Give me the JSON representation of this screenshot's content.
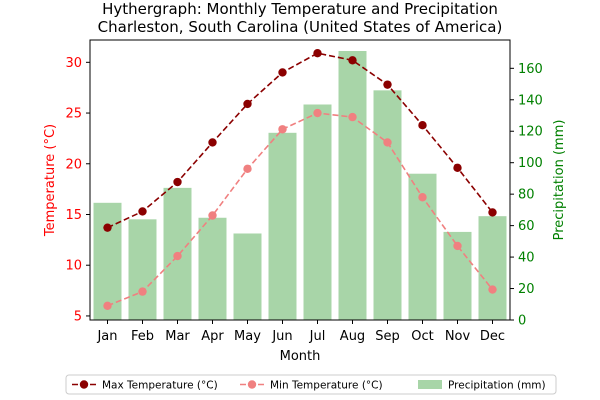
{
  "chart_data": {
    "type": "bar+line",
    "title": "Hythergraph: Monthly Temperature and Precipitation",
    "subtitle": "Charleston, South Carolina (United States of America)",
    "xlabel": "Month",
    "ylabel_left": "Temperature (°C)",
    "ylabel_right": "Precipitation (mm)",
    "categories": [
      "Jan",
      "Feb",
      "Mar",
      "Apr",
      "May",
      "Jun",
      "Jul",
      "Aug",
      "Sep",
      "Oct",
      "Nov",
      "Dec"
    ],
    "ylim_left": [
      4.6,
      32.2
    ],
    "ylim_right": [
      0,
      178
    ],
    "yticks_left": [
      5,
      10,
      15,
      20,
      25,
      30
    ],
    "yticks_right": [
      0,
      20,
      40,
      60,
      80,
      100,
      120,
      140,
      160
    ],
    "grid": false,
    "legend_position": "bottom",
    "series": [
      {
        "name": "Max Temperature (°C)",
        "kind": "line",
        "axis": "left",
        "color": "#8b0000",
        "style": "dashed",
        "marker": "circle",
        "values": [
          13.7,
          15.3,
          18.2,
          22.1,
          25.9,
          29.0,
          30.9,
          30.2,
          27.8,
          23.8,
          19.6,
          15.2
        ]
      },
      {
        "name": "Min Temperature (°C)",
        "kind": "line",
        "axis": "left",
        "color": "#f08080",
        "style": "dashed",
        "marker": "circle",
        "values": [
          6.0,
          7.4,
          10.9,
          14.9,
          19.5,
          23.4,
          25.0,
          24.6,
          22.1,
          16.7,
          11.9,
          7.6
        ]
      },
      {
        "name": "Precipitation (mm)",
        "kind": "bar",
        "axis": "right",
        "color": "#a8d5a8",
        "values": [
          74.5,
          64,
          84,
          65,
          55,
          119,
          137,
          171,
          146,
          93,
          56,
          66
        ]
      }
    ],
    "colors": {
      "left_axis": "#ff0000",
      "right_axis": "#008000",
      "title": "#000000"
    }
  }
}
